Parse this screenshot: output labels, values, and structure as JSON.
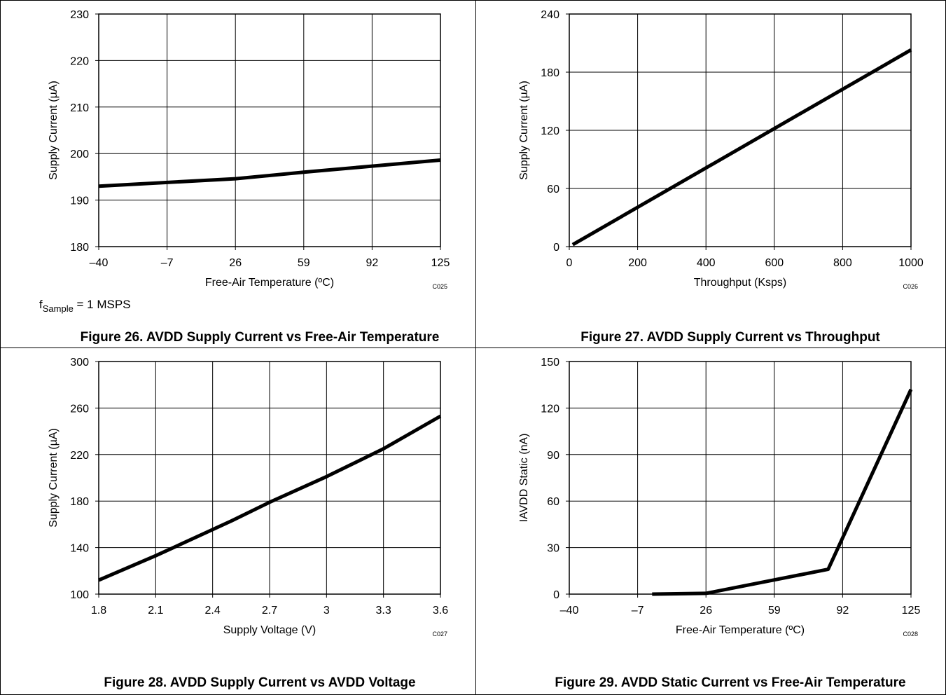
{
  "chart_data": [
    {
      "type": "line",
      "figure_caption": "Figure 26. AVDD Supply Current vs Free-Air Temperature",
      "xlabel": "Free-Air Temperature (ºC)",
      "ylabel": "Supply Current (µA)",
      "x_ticks": [
        "–40",
        "–7",
        "26",
        "59",
        "92",
        "125"
      ],
      "y_ticks": [
        "180",
        "190",
        "200",
        "210",
        "220",
        "230"
      ],
      "xlim": [
        -40,
        125
      ],
      "ylim": [
        180,
        230
      ],
      "grid": true,
      "code": "C025",
      "note_main": "f",
      "note_sub": "Sample",
      "note_rest": " = 1 MSPS",
      "series": [
        {
          "x": [
            -40,
            26,
            59,
            92,
            125
          ],
          "y": [
            193.0,
            194.6,
            196.0,
            197.3,
            198.6
          ]
        }
      ]
    },
    {
      "type": "line",
      "figure_caption": "Figure 27. AVDD Supply Current vs Throughput",
      "xlabel": "Throughput (Ksps)",
      "ylabel": "Supply Current (µA)",
      "x_ticks": [
        "0",
        "200",
        "400",
        "600",
        "800",
        "1000"
      ],
      "y_ticks": [
        "0",
        "60",
        "120",
        "180",
        "240"
      ],
      "xlim": [
        0,
        1000
      ],
      "ylim": [
        0,
        240
      ],
      "grid": true,
      "code": "C026",
      "series": [
        {
          "x": [
            10,
            1000
          ],
          "y": [
            2,
            203
          ]
        }
      ]
    },
    {
      "type": "line",
      "figure_caption": "Figure 28. AVDD Supply Current vs AVDD Voltage",
      "xlabel": "Supply Voltage (V)",
      "ylabel": "Supply Current (µA)",
      "x_ticks": [
        "1.8",
        "2.1",
        "2.4",
        "2.7",
        "3",
        "3.3",
        "3.6"
      ],
      "y_ticks": [
        "100",
        "140",
        "180",
        "220",
        "260",
        "300"
      ],
      "xlim": [
        1.8,
        3.6
      ],
      "ylim": [
        100,
        300
      ],
      "grid": true,
      "code": "C027",
      "series": [
        {
          "x": [
            1.8,
            2.1,
            2.5,
            2.7,
            3.0,
            3.3,
            3.6
          ],
          "y": [
            112,
            133,
            163,
            179,
            201,
            225,
            253
          ]
        }
      ]
    },
    {
      "type": "line",
      "figure_caption": "Figure 29. AVDD Static Current vs Free-Air Temperature",
      "xlabel": "Free-Air Temperature (ºC)",
      "ylabel": "IAVDD Static (nA)",
      "x_ticks": [
        "–40",
        "–7",
        "26",
        "59",
        "92",
        "125"
      ],
      "y_ticks": [
        "0",
        "30",
        "60",
        "90",
        "120",
        "150"
      ],
      "xlim": [
        -40,
        125
      ],
      "ylim": [
        0,
        150
      ],
      "grid": true,
      "code": "C028",
      "series": [
        {
          "x": [
            0,
            26,
            85,
            125
          ],
          "y": [
            0,
            0.5,
            16,
            132
          ]
        }
      ]
    }
  ]
}
